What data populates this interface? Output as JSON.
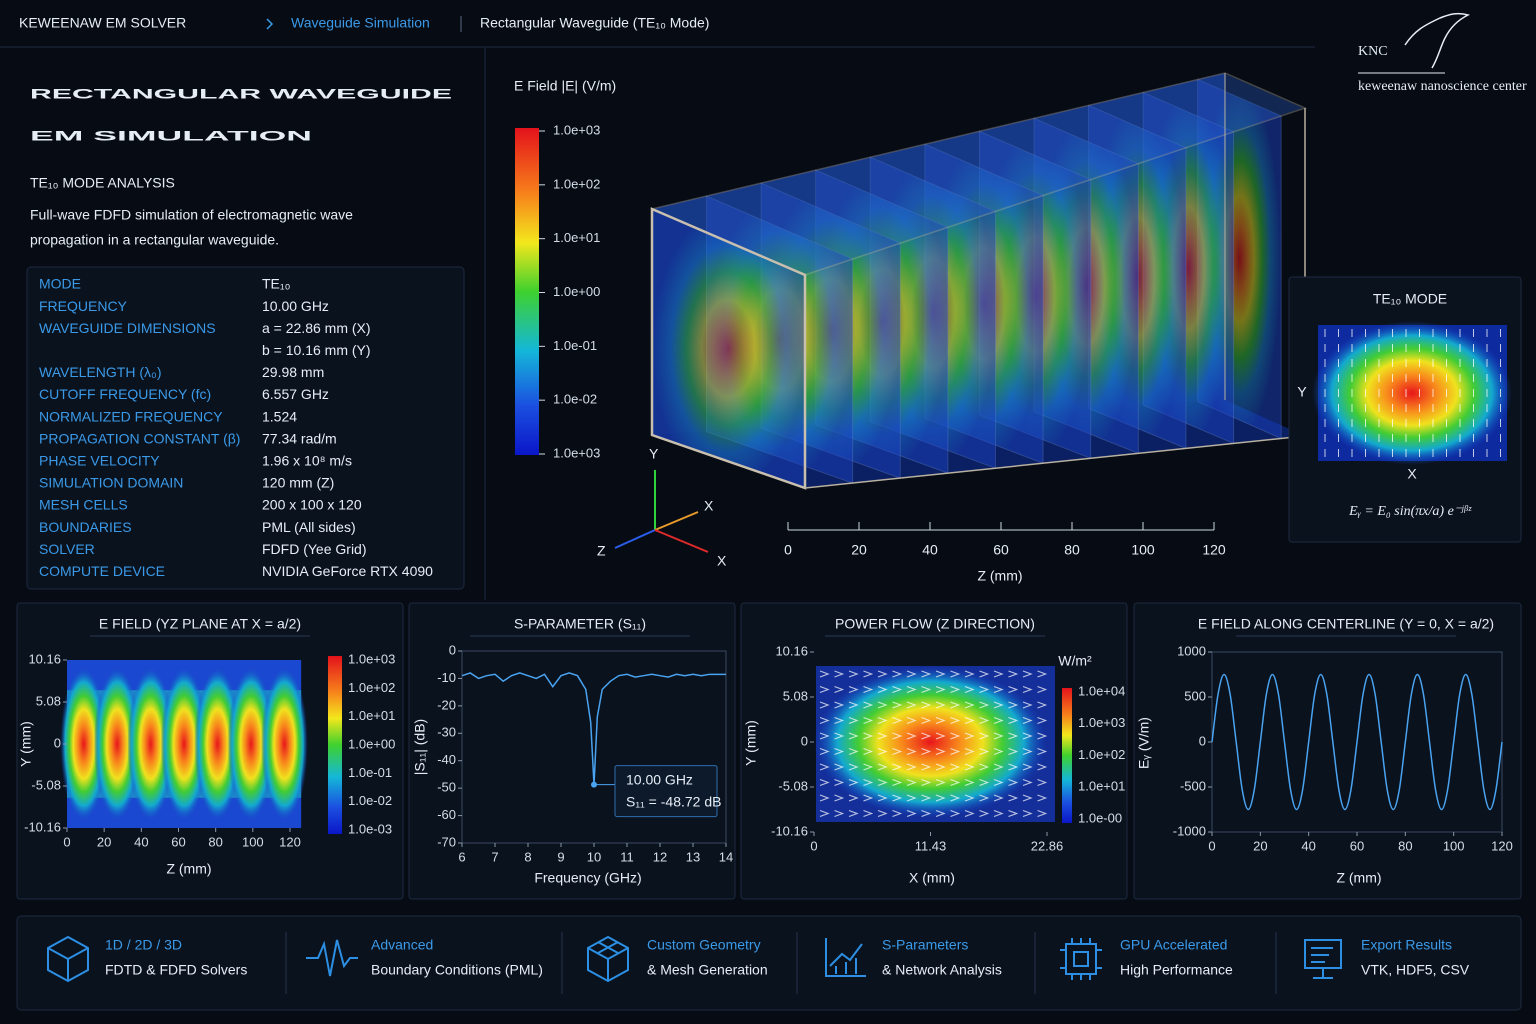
{
  "header": {
    "app_name": "KEWEENAW EM SOLVER",
    "breadcrumb": [
      "Waveguide Simulation",
      "Rectangular Waveguide (TE₁₀ Mode)"
    ]
  },
  "logo": {
    "mark": "KNC",
    "name": "keweenaw nanoscience center"
  },
  "intro": {
    "title": [
      "RECTANGULAR WAVEGUIDE",
      "EM SIMULATION"
    ],
    "subtitle": "TE₁₀ MODE ANALYSIS",
    "description": [
      "Full-wave FDFD simulation of electromagnetic wave",
      "propagation in a rectangular waveguide."
    ]
  },
  "parameters": [
    {
      "label": "MODE",
      "values": [
        "TE₁₀"
      ]
    },
    {
      "label": "FREQUENCY",
      "values": [
        "10.00 GHz"
      ]
    },
    {
      "label": "WAVEGUIDE DIMENSIONS",
      "values": [
        "a = 22.86 mm (X)",
        "b = 10.16 mm (Y)"
      ]
    },
    {
      "label": "WAVELENGTH (λ₀)",
      "values": [
        "29.98 mm"
      ]
    },
    {
      "label": "CUTOFF FREQUENCY (fc)",
      "values": [
        "6.557 GHz"
      ]
    },
    {
      "label": "NORMALIZED FREQUENCY",
      "values": [
        "1.524"
      ]
    },
    {
      "label": "PROPAGATION CONSTANT (β)",
      "values": [
        "77.34 rad/m"
      ]
    },
    {
      "label": "PHASE VELOCITY",
      "values": [
        "1.96 x 10⁸ m/s"
      ]
    },
    {
      "label": "SIMULATION DOMAIN",
      "values": [
        "120 mm (Z)"
      ]
    },
    {
      "label": "MESH CELLS",
      "values": [
        "200 x 100 x 120"
      ]
    },
    {
      "label": "BOUNDARIES",
      "values": [
        "PML (All sides)"
      ]
    },
    {
      "label": "SOLVER",
      "values": [
        "FDFD (Yee Grid)"
      ]
    },
    {
      "label": "COMPUTE DEVICE",
      "values": [
        "NVIDIA GeForce RTX 4090"
      ]
    }
  ],
  "view3d": {
    "colorbar_title": "E Field |E| (V/m)",
    "colorbar_labels": [
      "1.0e+03",
      "1.0e+02",
      "1.0e+01",
      "1.0e+00",
      "1.0e-01",
      "1.0e-02",
      "1.0e+03"
    ],
    "triad": [
      "Y",
      "X",
      "Z",
      "X"
    ],
    "zaxis": {
      "xlim": [
        0,
        120
      ],
      "xticks": [
        0,
        20,
        40,
        60,
        80,
        100,
        120
      ],
      "label": "Z (mm)"
    }
  },
  "mode_panel": {
    "title": "TE₁₀ MODE",
    "ylabel": "Y",
    "xlabel": "X",
    "formula": "Eᵧ = E₀ sin(πx/a) e⁻ʲᵝᶻ"
  },
  "chart_data": [
    {
      "type": "heatmap",
      "title": "E FIELD (YZ PLANE AT X = a/2)",
      "xlabel": "Z (mm)",
      "ylabel": "Y (mm)",
      "xlim": [
        0,
        120
      ],
      "xticks": [
        0,
        20,
        40,
        60,
        80,
        100,
        120
      ],
      "ylim": [
        -10.16,
        10.16
      ],
      "yticks": [
        10.16,
        5.08,
        0,
        -5.08,
        -10.16
      ],
      "colorbar_labels": [
        "1.0e+03",
        "1.0e+02",
        "1.0e+01",
        "1.0e+00",
        "1.0e-01",
        "1.0e-02",
        "1.0e-03"
      ]
    },
    {
      "type": "line",
      "title": "S-PARAMETER (S₁₁)",
      "xlabel": "Frequency (GHz)",
      "ylabel": "|S₁₁| (dB)",
      "xlim": [
        6,
        14
      ],
      "xticks": [
        6,
        7,
        8,
        9,
        10,
        11,
        12,
        13,
        14
      ],
      "ylim": [
        -70,
        0
      ],
      "yticks": [
        0,
        -10,
        -20,
        -30,
        -40,
        -50,
        -60,
        -70
      ],
      "series": [
        {
          "color": "#4aa3f0",
          "x": [
            6,
            6.25,
            6.5,
            6.75,
            7,
            7.25,
            7.5,
            7.75,
            8,
            8.25,
            8.5,
            8.75,
            9,
            9.25,
            9.5,
            9.75,
            9.9,
            10,
            10.1,
            10.25,
            10.5,
            10.75,
            11,
            11.25,
            11.5,
            11.75,
            12,
            12.25,
            12.5,
            12.75,
            13,
            13.25,
            13.5,
            13.75,
            14
          ],
          "values": [
            -9,
            -8,
            -10,
            -9,
            -8.5,
            -11,
            -9,
            -8,
            -9,
            -10,
            -8.5,
            -13,
            -9,
            -8,
            -9,
            -14,
            -26,
            -48.72,
            -24,
            -14,
            -11,
            -9,
            -8.5,
            -9.5,
            -9,
            -8.5,
            -9,
            -9.5,
            -8.5,
            -9,
            -8.5,
            -9,
            -8.5,
            -8.5,
            -8.5
          ]
        }
      ],
      "annotation": {
        "index": 17,
        "lines": [
          "10.00 GHz",
          "S₁₁ = -48.72 dB"
        ]
      }
    },
    {
      "type": "heatmap",
      "title": "POWER FLOW (Z DIRECTION)",
      "xlabel": "X (mm)",
      "ylabel": "Y (mm)",
      "xlim": [
        0,
        22.86
      ],
      "xticks": [
        0,
        11.43,
        22.86
      ],
      "ylim": [
        -10.16,
        10.16
      ],
      "yticks": [
        10.16,
        5.08,
        0,
        -5.08,
        -10.16
      ],
      "colorbar_title": "W/m²",
      "colorbar_labels": [
        "1.0e+04",
        "1.0e+03",
        "1.0e+02",
        "1.0e+01",
        "1.0e-00"
      ]
    },
    {
      "type": "line",
      "title": "E FIELD ALONG CENTERLINE (Y = 0, X = a/2)",
      "xlabel": "Z (mm)",
      "ylabel": "Eᵧ (V/m)",
      "xlim": [
        0,
        120
      ],
      "xticks": [
        0,
        20,
        40,
        60,
        80,
        100,
        120
      ],
      "ylim": [
        -1000,
        1000
      ],
      "yticks": [
        1000,
        500,
        0,
        -500,
        -1000
      ],
      "series": [
        {
          "color": "#4aa3f0",
          "x": [
            0,
            2.5,
            5,
            7.5,
            10,
            12.5,
            15,
            17.5,
            20,
            22.5,
            25,
            27.5,
            30,
            32.5,
            35,
            37.5,
            40,
            42.5,
            45,
            47.5,
            50,
            52.5,
            55,
            57.5,
            60,
            62.5,
            65,
            67.5,
            70,
            72.5,
            75,
            77.5,
            80,
            82.5,
            85,
            87.5,
            90,
            92.5,
            95,
            97.5,
            100,
            102.5,
            105,
            107.5,
            110,
            112.5,
            115,
            117.5,
            120
          ],
          "values": [
            0,
            530,
            750,
            530,
            0,
            -530,
            -750,
            -530,
            0,
            530,
            750,
            530,
            0,
            -530,
            -750,
            -530,
            0,
            530,
            750,
            530,
            0,
            -530,
            -750,
            -530,
            0,
            530,
            750,
            530,
            0,
            -530,
            -750,
            -530,
            0,
            530,
            750,
            530,
            0,
            -530,
            -750,
            -530,
            0,
            530,
            750,
            530,
            0,
            -530,
            -750,
            -530,
            0
          ]
        }
      ]
    }
  ],
  "features": [
    {
      "title": "1D / 2D / 3D",
      "subtitle": "FDTD & FDFD Solvers"
    },
    {
      "title": "Advanced",
      "subtitle": "Boundary Conditions (PML)"
    },
    {
      "title": "Custom Geometry",
      "subtitle": "& Mesh Generation"
    },
    {
      "title": "S-Parameters",
      "subtitle": "& Network Analysis"
    },
    {
      "title": "GPU Accelerated",
      "subtitle": "High Performance"
    },
    {
      "title": "Export Results",
      "subtitle": "VTK, HDF5, CSV"
    }
  ]
}
